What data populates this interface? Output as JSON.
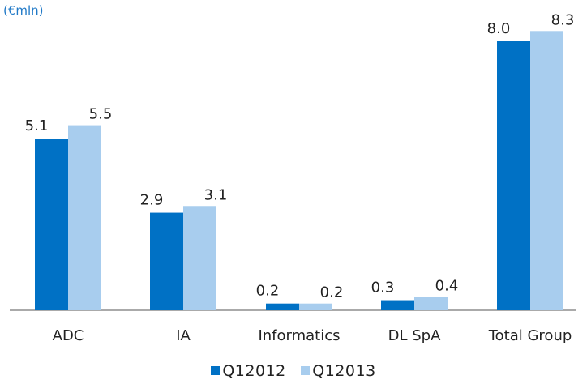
{
  "unit_label": "(€mln)",
  "colors": {
    "series1": "#0071c5",
    "series2": "#a8cdee",
    "axis": "#555555",
    "unit": "#2079c7"
  },
  "chart_data": {
    "type": "bar",
    "ylabel": "(€mln)",
    "categories": [
      "ADC",
      "IA",
      "Informatics",
      "DL SpA",
      "Total Group"
    ],
    "series": [
      {
        "name": "Q12012",
        "values": [
          5.1,
          2.9,
          0.2,
          0.3,
          8.0
        ],
        "labels": [
          "5.1",
          "2.9",
          "0.2",
          "0.3",
          "8.0"
        ]
      },
      {
        "name": "Q12013",
        "values": [
          5.5,
          3.1,
          0.2,
          0.4,
          8.3
        ],
        "labels": [
          "5.5",
          "3.1",
          "0.2",
          "0.4",
          "8.3"
        ]
      }
    ],
    "ylim": [
      0,
      8.5
    ],
    "grid": false,
    "legend": "bottom"
  }
}
